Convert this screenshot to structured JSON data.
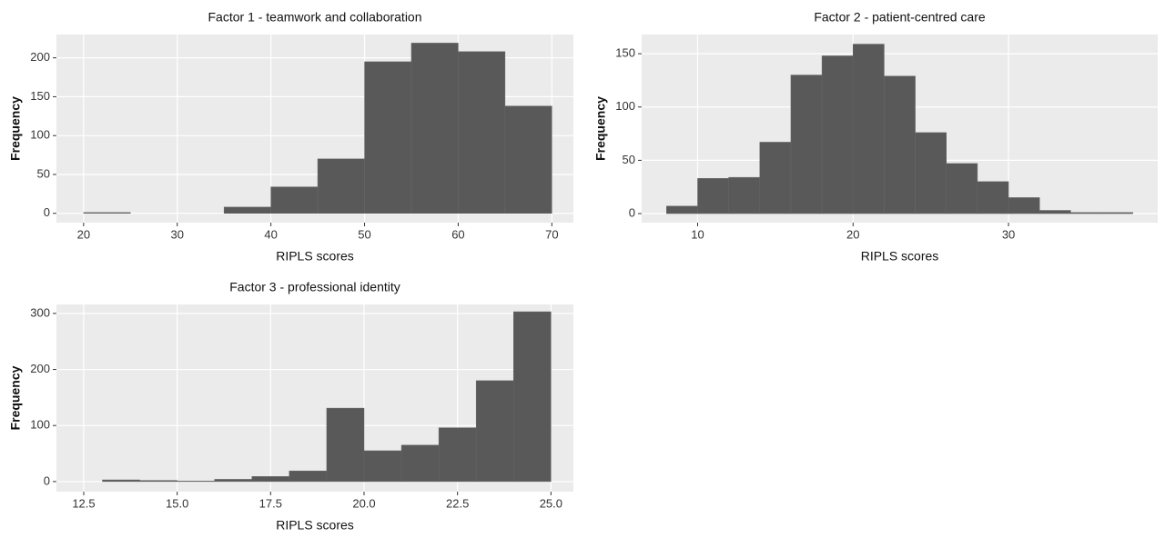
{
  "chart_data": [
    {
      "type": "histogram",
      "title": "Factor 1 - teamwork and collaboration",
      "xlabel": "RIPLS scores",
      "ylabel": "Frequency",
      "bins": [
        20,
        25,
        30,
        35,
        40,
        45,
        50,
        55,
        60,
        65,
        70
      ],
      "values": [
        1,
        0,
        0,
        8,
        34,
        70,
        195,
        219,
        208,
        138
      ],
      "color": "#595959",
      "xlim": [
        17.1,
        72.3
      ],
      "ylim": [
        -12,
        230
      ],
      "xticks": [
        20,
        30,
        40,
        50,
        60,
        70
      ],
      "yticks": [
        0,
        50,
        100,
        150,
        200
      ],
      "grid": true
    },
    {
      "type": "histogram",
      "title": "Factor 2 - patient-centred care",
      "xlabel": "RIPLS scores",
      "ylabel": "Frequency",
      "bins": [
        8,
        10,
        12,
        14,
        16,
        18,
        20,
        22,
        24,
        26,
        28,
        30,
        32,
        34,
        36,
        38
      ],
      "values": [
        7,
        33,
        34,
        67,
        130,
        148,
        159,
        129,
        76,
        47,
        30,
        15,
        3,
        1,
        1
      ],
      "color": "#595959",
      "xlim": [
        6.4,
        39.6
      ],
      "ylim": [
        -8.5,
        168
      ],
      "xticks": [
        10,
        20,
        30
      ],
      "yticks": [
        0,
        50,
        100,
        150
      ],
      "grid": true
    },
    {
      "type": "histogram",
      "title": "Factor 3 - professional identity",
      "xlabel": "RIPLS scores",
      "ylabel": "Frequency",
      "bins": [
        13,
        14,
        15,
        16,
        17,
        18,
        19,
        20,
        21,
        22,
        23,
        24,
        25
      ],
      "values": [
        3,
        2,
        1,
        4,
        9,
        19,
        131,
        55,
        65,
        96,
        180,
        303
      ],
      "color": "#595959",
      "xlim": [
        11.77,
        25.6
      ],
      "ylim": [
        -18,
        316
      ],
      "xticks": [
        12.5,
        {
          "value": 15,
          "label": "15.0"
        },
        17.5,
        {
          "value": 20,
          "label": "20.0"
        },
        22.5,
        {
          "value": 25,
          "label": "25.0"
        }
      ],
      "yticks": [
        0,
        100,
        200,
        300
      ],
      "grid": true
    }
  ]
}
